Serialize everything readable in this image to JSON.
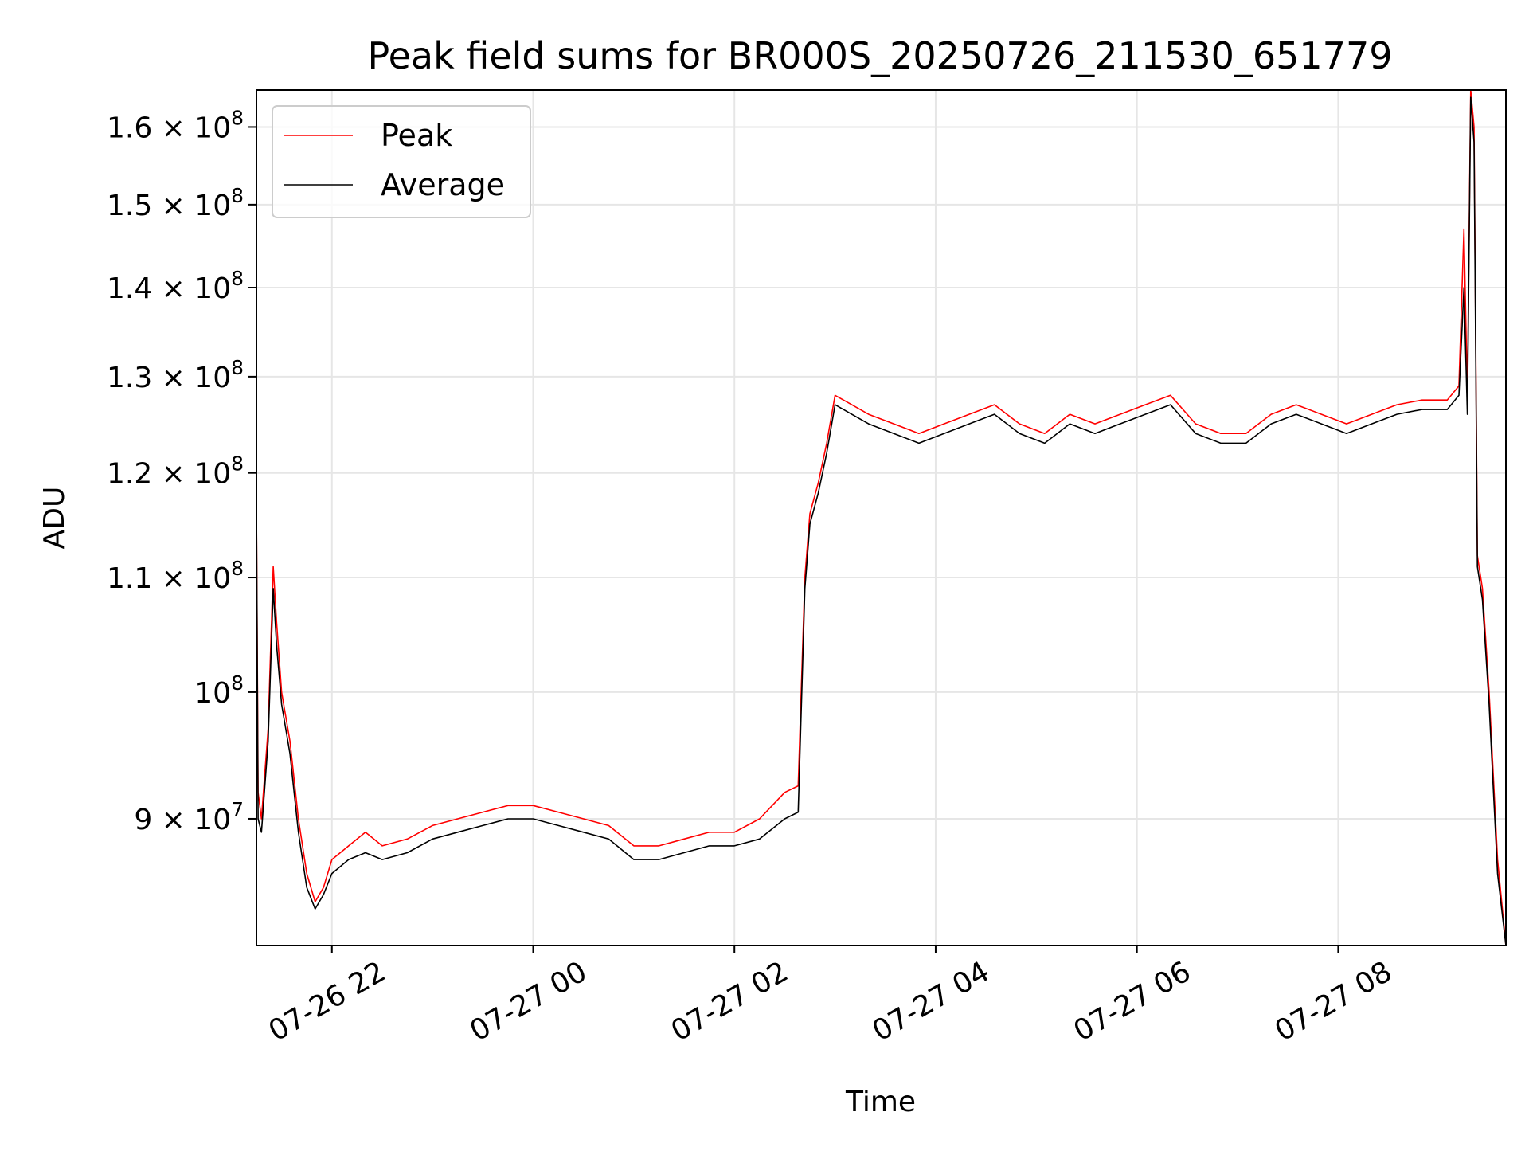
{
  "chart_data": {
    "type": "line",
    "title": "Peak field sums for BR000S_20250726_211530_651779",
    "xlabel": "Time",
    "ylabel": "ADU",
    "yscale": "log",
    "ylim": [
      81000000,
      165000000
    ],
    "xlim": [
      "2025-07-26 21:15",
      "2025-07-27 09:40"
    ],
    "grid": true,
    "legend": {
      "position": "top-left"
    },
    "x_ticks": [
      {
        "t": "2025-07-26 22:00",
        "label": "07-26 22"
      },
      {
        "t": "2025-07-27 00:00",
        "label": "07-27 00"
      },
      {
        "t": "2025-07-27 02:00",
        "label": "07-27 02"
      },
      {
        "t": "2025-07-27 04:00",
        "label": "07-27 04"
      },
      {
        "t": "2025-07-27 06:00",
        "label": "07-27 06"
      },
      {
        "t": "2025-07-27 08:00",
        "label": "07-27 08"
      }
    ],
    "y_ticks": [
      {
        "value": 90000000,
        "mant": "9",
        "exp": "7"
      },
      {
        "value": 100000000,
        "mant": "",
        "exp": "8"
      },
      {
        "value": 110000000,
        "mant": "1.1",
        "exp": "8"
      },
      {
        "value": 120000000,
        "mant": "1.2",
        "exp": "8"
      },
      {
        "value": 130000000,
        "mant": "1.3",
        "exp": "8"
      },
      {
        "value": 140000000,
        "mant": "1.4",
        "exp": "8"
      },
      {
        "value": 150000000,
        "mant": "1.5",
        "exp": "8"
      },
      {
        "value": 160000000,
        "mant": "1.6",
        "exp": "8"
      }
    ],
    "series": [
      {
        "name": "Peak",
        "color": "#ff0000",
        "x": [
          "2025-07-26 21:15",
          "2025-07-26 21:16",
          "2025-07-26 21:18",
          "2025-07-26 21:22",
          "2025-07-26 21:25",
          "2025-07-26 21:27",
          "2025-07-26 21:30",
          "2025-07-26 21:35",
          "2025-07-26 21:40",
          "2025-07-26 21:45",
          "2025-07-26 21:50",
          "2025-07-26 21:55",
          "2025-07-26 22:00",
          "2025-07-26 22:10",
          "2025-07-26 22:20",
          "2025-07-26 22:30",
          "2025-07-26 22:45",
          "2025-07-26 23:00",
          "2025-07-26 23:15",
          "2025-07-26 23:30",
          "2025-07-26 23:45",
          "2025-07-27 00:00",
          "2025-07-27 00:15",
          "2025-07-27 00:30",
          "2025-07-27 00:45",
          "2025-07-27 01:00",
          "2025-07-27 01:15",
          "2025-07-27 01:30",
          "2025-07-27 01:45",
          "2025-07-27 02:00",
          "2025-07-27 02:15",
          "2025-07-27 02:30",
          "2025-07-27 02:38",
          "2025-07-27 02:42",
          "2025-07-27 02:45",
          "2025-07-27 02:50",
          "2025-07-27 02:55",
          "2025-07-27 03:00",
          "2025-07-27 03:10",
          "2025-07-27 03:20",
          "2025-07-27 03:35",
          "2025-07-27 03:50",
          "2025-07-27 04:05",
          "2025-07-27 04:20",
          "2025-07-27 04:35",
          "2025-07-27 04:50",
          "2025-07-27 05:05",
          "2025-07-27 05:20",
          "2025-07-27 05:35",
          "2025-07-27 05:50",
          "2025-07-27 06:05",
          "2025-07-27 06:20",
          "2025-07-27 06:35",
          "2025-07-27 06:50",
          "2025-07-27 07:05",
          "2025-07-27 07:20",
          "2025-07-27 07:35",
          "2025-07-27 07:50",
          "2025-07-27 08:05",
          "2025-07-27 08:20",
          "2025-07-27 08:35",
          "2025-07-27 08:50",
          "2025-07-27 09:05",
          "2025-07-27 09:12",
          "2025-07-27 09:15",
          "2025-07-27 09:17",
          "2025-07-27 09:19",
          "2025-07-27 09:21",
          "2025-07-27 09:23",
          "2025-07-27 09:26",
          "2025-07-27 09:30",
          "2025-07-27 09:35",
          "2025-07-27 09:40"
        ],
        "values": [
          117000000,
          92000000,
          90000000,
          97000000,
          111000000,
          106000000,
          100000000,
          96000000,
          90000000,
          86000000,
          84000000,
          85000000,
          87000000,
          88000000,
          89000000,
          88000000,
          88500000,
          89500000,
          90000000,
          90500000,
          91000000,
          91000000,
          90500000,
          90000000,
          89500000,
          88000000,
          88000000,
          88500000,
          89000000,
          89000000,
          90000000,
          92000000,
          92500000,
          110000000,
          116000000,
          119000000,
          123000000,
          128000000,
          127000000,
          126000000,
          125000000,
          124000000,
          125000000,
          126000000,
          127000000,
          125000000,
          124000000,
          126000000,
          125000000,
          126000000,
          127000000,
          128000000,
          125000000,
          124000000,
          124000000,
          126000000,
          127000000,
          126000000,
          125000000,
          126000000,
          127000000,
          127500000,
          127500000,
          129000000,
          147000000,
          128000000,
          165000000,
          160000000,
          112000000,
          109000000,
          100000000,
          87000000,
          81000000
        ]
      },
      {
        "name": "Average",
        "color": "#000000",
        "x": [
          "2025-07-26 21:15",
          "2025-07-26 21:16",
          "2025-07-26 21:18",
          "2025-07-26 21:22",
          "2025-07-26 21:25",
          "2025-07-26 21:27",
          "2025-07-26 21:30",
          "2025-07-26 21:35",
          "2025-07-26 21:40",
          "2025-07-26 21:45",
          "2025-07-26 21:50",
          "2025-07-26 21:55",
          "2025-07-26 22:00",
          "2025-07-26 22:10",
          "2025-07-26 22:20",
          "2025-07-26 22:30",
          "2025-07-26 22:45",
          "2025-07-26 23:00",
          "2025-07-26 23:15",
          "2025-07-26 23:30",
          "2025-07-26 23:45",
          "2025-07-27 00:00",
          "2025-07-27 00:15",
          "2025-07-27 00:30",
          "2025-07-27 00:45",
          "2025-07-27 01:00",
          "2025-07-27 01:15",
          "2025-07-27 01:30",
          "2025-07-27 01:45",
          "2025-07-27 02:00",
          "2025-07-27 02:15",
          "2025-07-27 02:30",
          "2025-07-27 02:38",
          "2025-07-27 02:42",
          "2025-07-27 02:45",
          "2025-07-27 02:50",
          "2025-07-27 02:55",
          "2025-07-27 03:00",
          "2025-07-27 03:10",
          "2025-07-27 03:20",
          "2025-07-27 03:35",
          "2025-07-27 03:50",
          "2025-07-27 04:05",
          "2025-07-27 04:20",
          "2025-07-27 04:35",
          "2025-07-27 04:50",
          "2025-07-27 05:05",
          "2025-07-27 05:20",
          "2025-07-27 05:35",
          "2025-07-27 05:50",
          "2025-07-27 06:05",
          "2025-07-27 06:20",
          "2025-07-27 06:35",
          "2025-07-27 06:50",
          "2025-07-27 07:05",
          "2025-07-27 07:20",
          "2025-07-27 07:35",
          "2025-07-27 07:50",
          "2025-07-27 08:05",
          "2025-07-27 08:20",
          "2025-07-27 08:35",
          "2025-07-27 08:50",
          "2025-07-27 09:05",
          "2025-07-27 09:12",
          "2025-07-27 09:15",
          "2025-07-27 09:17",
          "2025-07-27 09:19",
          "2025-07-27 09:21",
          "2025-07-27 09:23",
          "2025-07-27 09:26",
          "2025-07-27 09:30",
          "2025-07-27 09:35",
          "2025-07-27 09:40"
        ],
        "values": [
          117000000,
          90000000,
          89000000,
          96000000,
          109000000,
          104000000,
          99000000,
          95000000,
          89000000,
          85000000,
          83500000,
          84500000,
          86000000,
          87000000,
          87500000,
          87000000,
          87500000,
          88500000,
          89000000,
          89500000,
          90000000,
          90000000,
          89500000,
          89000000,
          88500000,
          87000000,
          87000000,
          87500000,
          88000000,
          88000000,
          88500000,
          90000000,
          90500000,
          109000000,
          115000000,
          118000000,
          122000000,
          127000000,
          126000000,
          125000000,
          124000000,
          123000000,
          124000000,
          125000000,
          126000000,
          124000000,
          123000000,
          125000000,
          124000000,
          125000000,
          126000000,
          127000000,
          124000000,
          123000000,
          123000000,
          125000000,
          126000000,
          125000000,
          124000000,
          125000000,
          126000000,
          126500000,
          126500000,
          128000000,
          140000000,
          126000000,
          164000000,
          158000000,
          111000000,
          108000000,
          99000000,
          86000000,
          81000000
        ]
      }
    ]
  }
}
